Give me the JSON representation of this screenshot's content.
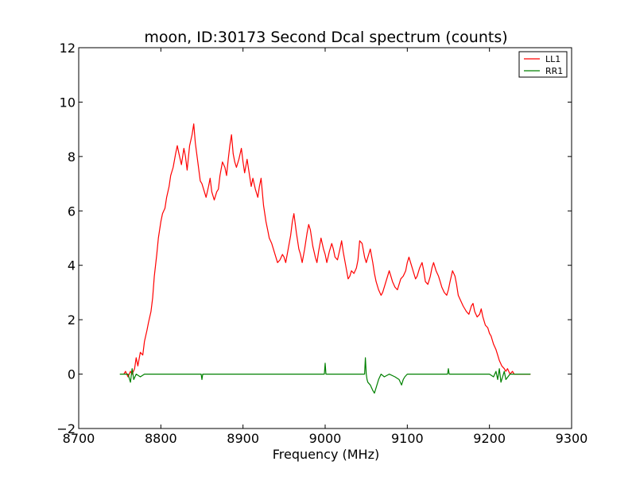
{
  "chart_data": {
    "type": "line",
    "title": "moon, ID:30173 Second Dcal spectrum (counts)",
    "xlabel": "Frequency (MHz)",
    "ylabel": "",
    "xlim": [
      8700,
      9300
    ],
    "ylim": [
      -2,
      12
    ],
    "x_ticks": [
      8700,
      8800,
      8900,
      9000,
      9100,
      9200,
      9300
    ],
    "y_ticks": [
      -2,
      0,
      2,
      4,
      6,
      8,
      10,
      12
    ],
    "x_tick_labels": [
      "8700",
      "8800",
      "8900",
      "9000",
      "9100",
      "9200",
      "9300"
    ],
    "y_tick_labels": [
      "−2",
      "0",
      "2",
      "4",
      "6",
      "8",
      "10",
      "12"
    ],
    "grid": false,
    "legend_position": "top-right",
    "series": [
      {
        "name": "LL1",
        "color": "#ff0000",
        "x": [
          8755,
          8757,
          8760,
          8763,
          8765,
          8768,
          8770,
          8772,
          8775,
          8778,
          8780,
          8783,
          8785,
          8788,
          8790,
          8792,
          8795,
          8797,
          8800,
          8802,
          8805,
          8807,
          8810,
          8812,
          8815,
          8818,
          8820,
          8822,
          8825,
          8828,
          8830,
          8832,
          8835,
          8838,
          8840,
          8842,
          8845,
          8848,
          8850,
          8852,
          8855,
          8858,
          8860,
          8862,
          8865,
          8868,
          8870,
          8872,
          8875,
          8878,
          8880,
          8882,
          8884,
          8886,
          8888,
          8890,
          8892,
          8895,
          8898,
          8900,
          8902,
          8905,
          8908,
          8910,
          8912,
          8915,
          8918,
          8920,
          8922,
          8925,
          8928,
          8930,
          8932,
          8935,
          8938,
          8940,
          8942,
          8945,
          8948,
          8950,
          8952,
          8955,
          8958,
          8960,
          8962,
          8965,
          8968,
          8970,
          8972,
          8975,
          8978,
          8980,
          8982,
          8985,
          8988,
          8990,
          8992,
          8995,
          8998,
          9000,
          9002,
          9005,
          9008,
          9010,
          9012,
          9015,
          9018,
          9020,
          9022,
          9025,
          9028,
          9030,
          9032,
          9035,
          9038,
          9040,
          9042,
          9045,
          9048,
          9050,
          9052,
          9055,
          9058,
          9060,
          9062,
          9065,
          9068,
          9070,
          9072,
          9075,
          9078,
          9080,
          9082,
          9085,
          9088,
          9090,
          9092,
          9095,
          9098,
          9100,
          9102,
          9105,
          9108,
          9110,
          9112,
          9115,
          9118,
          9120,
          9122,
          9125,
          9128,
          9130,
          9132,
          9135,
          9138,
          9140,
          9142,
          9145,
          9148,
          9150,
          9152,
          9155,
          9158,
          9160,
          9162,
          9165,
          9168,
          9170,
          9172,
          9175,
          9178,
          9180,
          9182,
          9185,
          9188,
          9190,
          9192,
          9195,
          9198,
          9200,
          9202,
          9205,
          9208,
          9210,
          9212,
          9215,
          9218,
          9220,
          9222,
          9225,
          9228,
          9230,
          9232,
          9235,
          9238,
          9240,
          9242,
          9245,
          9248,
          9250
        ],
        "y": [
          0.0,
          0.1,
          -0.1,
          0.1,
          0.0,
          0.2,
          0.6,
          0.3,
          0.8,
          0.7,
          1.2,
          1.6,
          1.9,
          2.3,
          2.8,
          3.6,
          4.4,
          5.0,
          5.6,
          5.9,
          6.1,
          6.5,
          6.9,
          7.3,
          7.6,
          8.1,
          8.4,
          8.1,
          7.7,
          8.3,
          8.0,
          7.5,
          8.4,
          8.8,
          9.2,
          8.5,
          7.8,
          7.1,
          7.0,
          6.8,
          6.5,
          6.9,
          7.2,
          6.7,
          6.4,
          6.7,
          6.8,
          7.3,
          7.8,
          7.6,
          7.3,
          7.9,
          8.4,
          8.8,
          8.1,
          7.8,
          7.6,
          7.9,
          8.3,
          7.8,
          7.4,
          7.9,
          7.3,
          6.9,
          7.2,
          6.8,
          6.5,
          6.9,
          7.2,
          6.2,
          5.6,
          5.3,
          5.0,
          4.8,
          4.5,
          4.3,
          4.1,
          4.2,
          4.4,
          4.3,
          4.1,
          4.6,
          5.1,
          5.6,
          5.9,
          5.2,
          4.6,
          4.4,
          4.1,
          4.6,
          5.2,
          5.5,
          5.3,
          4.7,
          4.3,
          4.1,
          4.5,
          5.0,
          4.6,
          4.4,
          4.1,
          4.5,
          4.8,
          4.6,
          4.3,
          4.2,
          4.6,
          4.9,
          4.5,
          4.0,
          3.5,
          3.6,
          3.8,
          3.7,
          3.9,
          4.2,
          4.9,
          4.8,
          4.3,
          4.1,
          4.3,
          4.6,
          4.1,
          3.7,
          3.4,
          3.1,
          2.9,
          3.0,
          3.2,
          3.5,
          3.8,
          3.6,
          3.4,
          3.2,
          3.1,
          3.3,
          3.5,
          3.6,
          3.8,
          4.1,
          4.3,
          4.0,
          3.7,
          3.5,
          3.6,
          3.9,
          4.1,
          3.8,
          3.4,
          3.3,
          3.6,
          3.9,
          4.1,
          3.8,
          3.6,
          3.4,
          3.2,
          3.0,
          2.9,
          3.1,
          3.4,
          3.8,
          3.6,
          3.3,
          2.9,
          2.7,
          2.5,
          2.4,
          2.3,
          2.2,
          2.5,
          2.6,
          2.3,
          2.1,
          2.2,
          2.4,
          2.1,
          1.8,
          1.7,
          1.5,
          1.4,
          1.1,
          0.9,
          0.7,
          0.5,
          0.3,
          0.2,
          0.1,
          0.2,
          0.0,
          0.1,
          0.0,
          0.0,
          0.0,
          0.0,
          0.0,
          0.0,
          0.0,
          0.0,
          0.0
        ]
      },
      {
        "name": "RR1",
        "color": "#008000",
        "x": [
          8750,
          8755,
          8760,
          8763,
          8765,
          8767,
          8770,
          8775,
          8780,
          8800,
          8820,
          8840,
          8849,
          8850,
          8851,
          8870,
          8900,
          8950,
          8999,
          9000,
          9001,
          9030,
          9048,
          9049,
          9050,
          9051,
          9052,
          9055,
          9058,
          9060,
          9062,
          9065,
          9068,
          9072,
          9078,
          9085,
          9090,
          9093,
          9095,
          9097,
          9100,
          9120,
          9149,
          9150,
          9151,
          9180,
          9200,
          9205,
          9208,
          9210,
          9212,
          9214,
          9216,
          9218,
          9220,
          9225,
          9230,
          9240,
          9250
        ],
        "y": [
          0.0,
          0.0,
          0.0,
          -0.3,
          0.2,
          -0.2,
          0.0,
          -0.1,
          0.0,
          0.0,
          0.0,
          0.0,
          0.0,
          -0.2,
          0.0,
          0.0,
          0.0,
          0.0,
          0.0,
          0.4,
          0.0,
          0.0,
          0.0,
          0.6,
          0.0,
          -0.2,
          -0.3,
          -0.4,
          -0.6,
          -0.7,
          -0.5,
          -0.2,
          0.0,
          -0.1,
          0.0,
          -0.1,
          -0.2,
          -0.4,
          -0.2,
          -0.1,
          0.0,
          0.0,
          0.0,
          0.2,
          0.0,
          0.0,
          0.0,
          -0.1,
          0.1,
          -0.2,
          0.2,
          -0.3,
          -0.1,
          0.1,
          -0.2,
          0.0,
          0.0,
          0.0,
          0.0
        ]
      }
    ]
  }
}
